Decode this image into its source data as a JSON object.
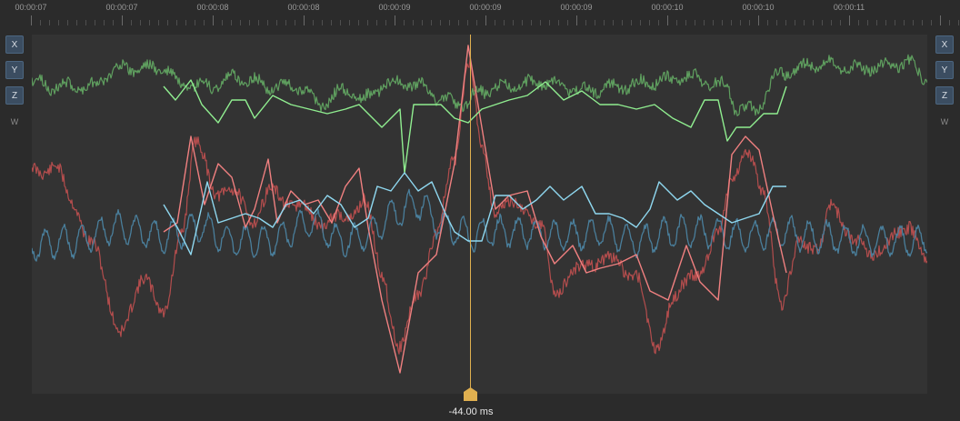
{
  "timeline": {
    "labels": [
      "00:00:07",
      "00:00:07",
      "00:00:08",
      "00:00:08",
      "00:00:09",
      "00:00:09",
      "00:00:09",
      "00:00:10",
      "00:00:10",
      "00:00:11"
    ]
  },
  "axis_toggles_left": [
    {
      "label": "X",
      "name": "x-axis-toggle-left"
    },
    {
      "label": "Y",
      "name": "y-axis-toggle-left"
    },
    {
      "label": "Z",
      "name": "z-axis-toggle-left"
    },
    {
      "label": "W",
      "name": "w-axis-toggle-left"
    }
  ],
  "axis_toggles_right": [
    {
      "label": "X",
      "name": "x-axis-toggle-right"
    },
    {
      "label": "Y",
      "name": "y-axis-toggle-right"
    },
    {
      "label": "Z",
      "name": "z-axis-toggle-right"
    },
    {
      "label": "W",
      "name": "w-axis-toggle-right"
    }
  ],
  "playhead": {
    "label": "-44.00 ms"
  },
  "colors": {
    "background": "#2b2b2b",
    "plot_background": "#333333",
    "x_raw": "#b34d4d",
    "x_sampled": "#f08080",
    "y_raw": "#5f9f5f",
    "y_sampled": "#90ee90",
    "z_raw": "#4a7f9c",
    "z_sampled": "#8fd8f0",
    "playhead": "#e0b050",
    "button": "#3b4d61"
  },
  "series": [
    {
      "axis": "X",
      "kind": "raw"
    },
    {
      "axis": "Y",
      "kind": "raw"
    },
    {
      "axis": "Z",
      "kind": "raw"
    },
    {
      "axis": "X",
      "kind": "sampled"
    },
    {
      "axis": "Y",
      "kind": "sampled"
    },
    {
      "axis": "Z",
      "kind": "sampled"
    }
  ]
}
